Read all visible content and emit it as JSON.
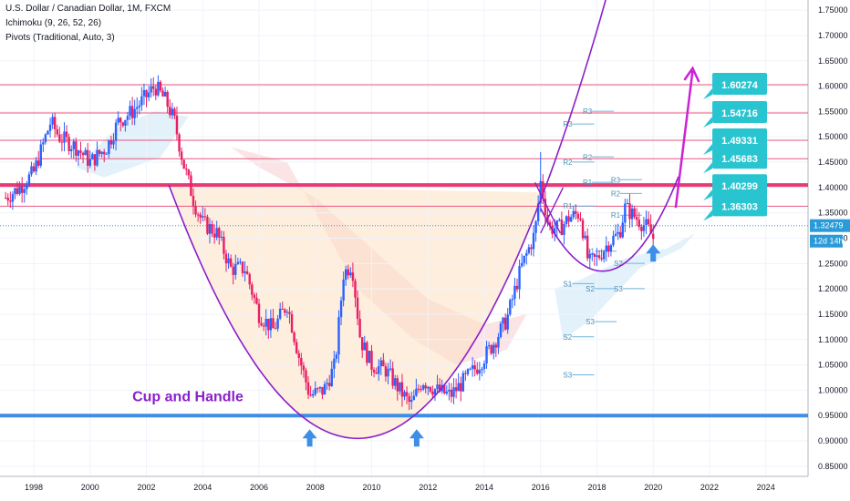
{
  "header": {
    "title": "U.S. Dollar / Canadian Dollar, 1M, FXCM",
    "indicator1": "Ichimoku (9, 26, 52, 26)",
    "indicator2": "Pivots (Traditional, Auto, 3)"
  },
  "chart_data": {
    "type": "candlestick",
    "ylim": [
      0.83,
      1.77
    ],
    "xlim": [
      1996.8,
      2025.5
    ],
    "y_ticks": [
      "1.75000",
      "1.70000",
      "1.65000",
      "1.60000",
      "1.55000",
      "1.50000",
      "1.45000",
      "1.40000",
      "1.35000",
      "1.30000",
      "1.25000",
      "1.20000",
      "1.15000",
      "1.10000",
      "1.05000",
      "1.00000",
      "0.95000",
      "0.90000",
      "0.85000"
    ],
    "x_ticks": [
      "1998",
      "2000",
      "2002",
      "2004",
      "2006",
      "2008",
      "2010",
      "2012",
      "2014",
      "2016",
      "2018",
      "2020",
      "2022",
      "2024"
    ],
    "price_path": [
      [
        1997.0,
        1.38
      ],
      [
        1997.5,
        1.4
      ],
      [
        1998.0,
        1.43
      ],
      [
        1998.6,
        1.53
      ],
      [
        1998.9,
        1.5
      ],
      [
        1999.5,
        1.48
      ],
      [
        2000.0,
        1.45
      ],
      [
        2000.6,
        1.48
      ],
      [
        2001.0,
        1.53
      ],
      [
        2001.5,
        1.55
      ],
      [
        2002.0,
        1.58
      ],
      [
        2002.3,
        1.6
      ],
      [
        2002.7,
        1.57
      ],
      [
        2003.0,
        1.53
      ],
      [
        2003.3,
        1.45
      ],
      [
        2003.7,
        1.37
      ],
      [
        2004.0,
        1.33
      ],
      [
        2004.5,
        1.31
      ],
      [
        2005.0,
        1.24
      ],
      [
        2005.5,
        1.24
      ],
      [
        2006.0,
        1.15
      ],
      [
        2006.5,
        1.12
      ],
      [
        2007.0,
        1.17
      ],
      [
        2007.4,
        1.07
      ],
      [
        2007.8,
        0.99
      ],
      [
        2008.3,
        1.0
      ],
      [
        2008.7,
        1.05
      ],
      [
        2009.0,
        1.23
      ],
      [
        2009.3,
        1.25
      ],
      [
        2009.6,
        1.1
      ],
      [
        2010.0,
        1.05
      ],
      [
        2010.5,
        1.04
      ],
      [
        2011.0,
        1.0
      ],
      [
        2011.4,
        0.97
      ],
      [
        2011.8,
        1.02
      ],
      [
        2012.3,
        1.0
      ],
      [
        2012.8,
        0.99
      ],
      [
        2013.3,
        1.02
      ],
      [
        2013.8,
        1.05
      ],
      [
        2014.3,
        1.09
      ],
      [
        2014.8,
        1.14
      ],
      [
        2015.3,
        1.24
      ],
      [
        2015.8,
        1.31
      ],
      [
        2016.0,
        1.41
      ],
      [
        2016.3,
        1.32
      ],
      [
        2016.7,
        1.32
      ],
      [
        2017.0,
        1.34
      ],
      [
        2017.4,
        1.35
      ],
      [
        2017.7,
        1.25
      ],
      [
        2018.0,
        1.26
      ],
      [
        2018.4,
        1.29
      ],
      [
        2018.8,
        1.31
      ],
      [
        2019.0,
        1.36
      ],
      [
        2019.4,
        1.34
      ],
      [
        2019.8,
        1.32
      ],
      [
        2020.0,
        1.3
      ]
    ],
    "price_levels": [
      "1.60274",
      "1.54716",
      "1.49331",
      "1.45683",
      "1.40299",
      "1.36303"
    ],
    "current_price": "1.32479",
    "countdown": "12d 14h",
    "support_level": 0.95,
    "resistance_level": 1.405,
    "cup_handle_label": "Cup and Handle",
    "pivot_labels": [
      {
        "text": "R3",
        "x": 2016.8,
        "y": 1.52
      },
      {
        "text": "R3",
        "x": 2017.5,
        "y": 1.545
      },
      {
        "text": "R2",
        "x": 2016.8,
        "y": 1.445
      },
      {
        "text": "R2",
        "x": 2017.5,
        "y": 1.455
      },
      {
        "text": "R1",
        "x": 2017.5,
        "y": 1.405
      },
      {
        "text": "R3",
        "x": 2018.5,
        "y": 1.41
      },
      {
        "text": "R2",
        "x": 2018.5,
        "y": 1.383
      },
      {
        "text": "R1",
        "x": 2016.8,
        "y": 1.358
      },
      {
        "text": "R1",
        "x": 2018.5,
        "y": 1.34
      },
      {
        "text": "S1",
        "x": 2017.6,
        "y": 1.269
      },
      {
        "text": "S2",
        "x": 2018.6,
        "y": 1.245
      },
      {
        "text": "S1",
        "x": 2016.8,
        "y": 1.205
      },
      {
        "text": "S2",
        "x": 2017.6,
        "y": 1.195
      },
      {
        "text": "S3",
        "x": 2018.6,
        "y": 1.195
      },
      {
        "text": "S3",
        "x": 2017.6,
        "y": 1.13
      },
      {
        "text": "S2",
        "x": 2016.8,
        "y": 1.1
      },
      {
        "text": "S3",
        "x": 2016.8,
        "y": 1.025
      }
    ]
  }
}
